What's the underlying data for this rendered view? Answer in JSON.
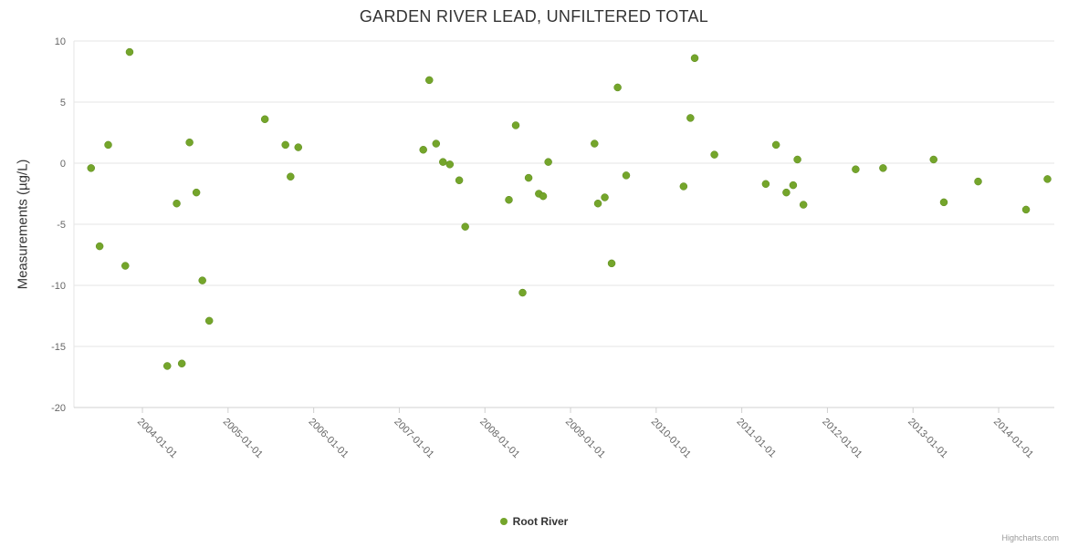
{
  "title": "GARDEN RIVER LEAD, UNFILTERED TOTAL",
  "credits": "Highcharts.com",
  "legend": {
    "label": "Root River"
  },
  "colors": {
    "point": "#74a52b",
    "point_stroke": "#5d8a1d",
    "grid": "#e6e6e6",
    "axis_line": "#d0d0d0",
    "tick_label": "#666666",
    "title_text": "#333333"
  },
  "chart_data": {
    "type": "scatter",
    "title": "GARDEN RIVER LEAD, UNFILTERED TOTAL",
    "xlabel": "",
    "ylabel": "Measurements (µg/L)",
    "xlim": [
      2003.2,
      2014.65
    ],
    "ylim": [
      -20,
      10
    ],
    "yticks": [
      10,
      5,
      0,
      -5,
      -10,
      -15,
      -20
    ],
    "xticks": [
      {
        "label": "2004-01-01",
        "value": 2004
      },
      {
        "label": "2005-01-01",
        "value": 2005
      },
      {
        "label": "2006-01-01",
        "value": 2006
      },
      {
        "label": "2007-01-01",
        "value": 2007
      },
      {
        "label": "2008-01-01",
        "value": 2008
      },
      {
        "label": "2009-01-01",
        "value": 2009
      },
      {
        "label": "2010-01-01",
        "value": 2010
      },
      {
        "label": "2011-01-01",
        "value": 2011
      },
      {
        "label": "2012-01-01",
        "value": 2012
      },
      {
        "label": "2013-01-01",
        "value": 2013
      },
      {
        "label": "2014-01-01",
        "value": 2014
      }
    ],
    "grid": true,
    "legend_position": "bottom-center",
    "series": [
      {
        "name": "Root River",
        "color": "#74a52b",
        "points": [
          [
            2003.4,
            -0.4
          ],
          [
            2003.5,
            -6.8
          ],
          [
            2003.6,
            1.5
          ],
          [
            2003.8,
            -8.4
          ],
          [
            2003.85,
            9.1
          ],
          [
            2004.29,
            -16.6
          ],
          [
            2004.4,
            -3.3
          ],
          [
            2004.46,
            -16.4
          ],
          [
            2004.55,
            1.7
          ],
          [
            2004.63,
            -2.4
          ],
          [
            2004.7,
            -9.6
          ],
          [
            2004.78,
            -12.9
          ],
          [
            2005.43,
            3.6
          ],
          [
            2005.67,
            1.5
          ],
          [
            2005.73,
            -1.1
          ],
          [
            2005.82,
            1.3
          ],
          [
            2007.28,
            1.1
          ],
          [
            2007.35,
            6.8
          ],
          [
            2007.43,
            1.6
          ],
          [
            2007.51,
            0.1
          ],
          [
            2007.59,
            -0.1
          ],
          [
            2007.7,
            -1.4
          ],
          [
            2007.77,
            -5.2
          ],
          [
            2008.28,
            -3.0
          ],
          [
            2008.36,
            3.1
          ],
          [
            2008.44,
            -10.6
          ],
          [
            2008.51,
            -1.2
          ],
          [
            2008.63,
            -2.5
          ],
          [
            2008.68,
            -2.7
          ],
          [
            2008.74,
            0.1
          ],
          [
            2009.28,
            1.6
          ],
          [
            2009.32,
            -3.3
          ],
          [
            2009.4,
            -2.8
          ],
          [
            2009.48,
            -8.2
          ],
          [
            2009.55,
            6.2
          ],
          [
            2009.65,
            -1.0
          ],
          [
            2010.32,
            -1.9
          ],
          [
            2010.4,
            3.7
          ],
          [
            2010.45,
            8.6
          ],
          [
            2010.68,
            0.7
          ],
          [
            2011.28,
            -1.7
          ],
          [
            2011.4,
            1.5
          ],
          [
            2011.52,
            -2.4
          ],
          [
            2011.6,
            -1.8
          ],
          [
            2011.65,
            0.3
          ],
          [
            2011.72,
            -3.4
          ],
          [
            2012.33,
            -0.5
          ],
          [
            2012.65,
            -0.4
          ],
          [
            2013.24,
            0.3
          ],
          [
            2013.36,
            -3.2
          ],
          [
            2013.76,
            -1.5
          ],
          [
            2014.32,
            -3.8
          ],
          [
            2014.57,
            -1.3
          ]
        ]
      }
    ]
  }
}
